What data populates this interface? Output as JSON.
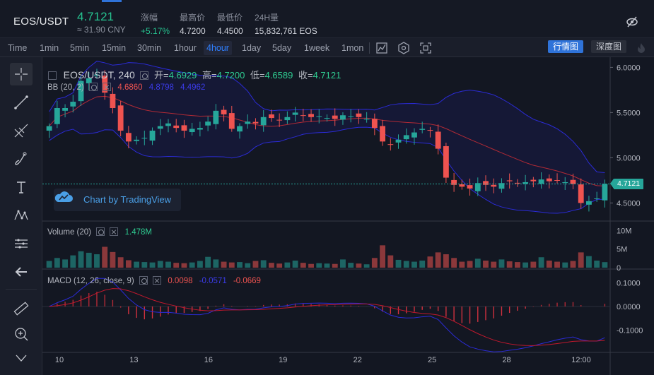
{
  "ticker": {
    "pair": "EOS/USDT",
    "price": "4.7121",
    "cny": "≈ 31.90 CNY",
    "change_label": "涨幅",
    "change_value": "+5.17%",
    "high_label": "最高价",
    "high_value": "4.7200",
    "low_label": "最低价",
    "low_value": "4.4500",
    "volume_label": "24H量",
    "volume_value": "15,832,761 EOS"
  },
  "toolbar": {
    "timeframes": [
      "Time",
      "1min",
      "5min",
      "15min",
      "30min",
      "1hour",
      "4hour",
      "1day",
      "5day",
      "1week",
      "1mon"
    ],
    "active": "4hour",
    "mode_candle": "行情图",
    "mode_depth": "深度图"
  },
  "main_legend": {
    "symbol": "EOS/USDT, 240",
    "open_label": "开=",
    "open": "4.6929",
    "high_label": "高=",
    "high": "4.7200",
    "low_label": "低=",
    "low": "4.6589",
    "close_label": "收=",
    "close": "4.7121"
  },
  "bb_legend": {
    "label": "BB (20, 2)",
    "basis": "4.6860",
    "upper": "4.8798",
    "lower": "4.4962"
  },
  "volume_legend": {
    "label": "Volume (20)",
    "value": "1.478M"
  },
  "macd_legend": {
    "label": "MACD (12, 26, close, 9)",
    "hist": "0.0098",
    "macd": "-0.0571",
    "signal": "-0.0669"
  },
  "watermark": "Chart by TradingView",
  "last_price_tag": "4.7121",
  "colors": {
    "up": "#26a69a",
    "down": "#ef5350",
    "bb": "#2b2bd6",
    "basis": "#b22a35",
    "accent": "#2f73d9"
  },
  "chart_data": {
    "type": "candlestick",
    "price_axis": {
      "ticks": [
        "6.0000",
        "5.5000",
        "5.0000",
        "4.5000"
      ],
      "range": [
        4.3,
        6.05
      ]
    },
    "volume_axis": {
      "ticks": [
        "10M",
        "5M",
        "0"
      ]
    },
    "macd_axis": {
      "ticks": [
        "0.1000",
        "0.0000",
        "-0.1000"
      ],
      "range": [
        -0.17,
        0.14
      ]
    },
    "time_axis": [
      "10",
      "13",
      "16",
      "19",
      "22",
      "25",
      "28",
      "12:00"
    ],
    "close": [
      5.35,
      5.55,
      5.55,
      5.62,
      5.85,
      5.88,
      5.92,
      5.72,
      5.55,
      5.3,
      5.18,
      5.2,
      5.22,
      5.3,
      5.35,
      5.38,
      5.33,
      5.3,
      5.32,
      5.33,
      5.4,
      5.52,
      5.48,
      5.32,
      5.35,
      5.4,
      5.38,
      5.45,
      5.44,
      5.42,
      5.45,
      5.5,
      5.47,
      5.45,
      5.46,
      5.44,
      5.43,
      5.47,
      5.46,
      5.45,
      5.43,
      5.33,
      5.18,
      5.15,
      5.2,
      5.25,
      5.28,
      5.32,
      5.3,
      5.1,
      4.78,
      4.7,
      4.68,
      4.66,
      4.72,
      4.7,
      4.68,
      4.72,
      4.74,
      4.72,
      4.73,
      4.74,
      4.76,
      4.74,
      4.75,
      4.73,
      4.71,
      4.5,
      4.52,
      4.55,
      4.71
    ],
    "volume_m": [
      1.8,
      2.6,
      2.2,
      3.3,
      4.4,
      4.0,
      3.6,
      5.6,
      4.2,
      2.8,
      2.0,
      1.6,
      1.5,
      1.4,
      1.8,
      1.6,
      1.3,
      1.2,
      1.4,
      1.8,
      2.9,
      2.2,
      1.6,
      1.4,
      1.5,
      1.2,
      1.8,
      2.0,
      1.3,
      1.1,
      1.4,
      1.9,
      1.3,
      1.0,
      1.2,
      1.1,
      1.0,
      2.2,
      1.3,
      1.1,
      0.9,
      2.6,
      6.0,
      3.3,
      2.1,
      1.8,
      1.6,
      1.9,
      3.0,
      4.1,
      3.6,
      2.6,
      1.6,
      1.8,
      2.4,
      1.9,
      1.6,
      2.2,
      1.7,
      1.5,
      1.4,
      1.6,
      2.8,
      1.9,
      1.6,
      1.4,
      1.8,
      4.1,
      3.1,
      1.9,
      1.48
    ]
  }
}
